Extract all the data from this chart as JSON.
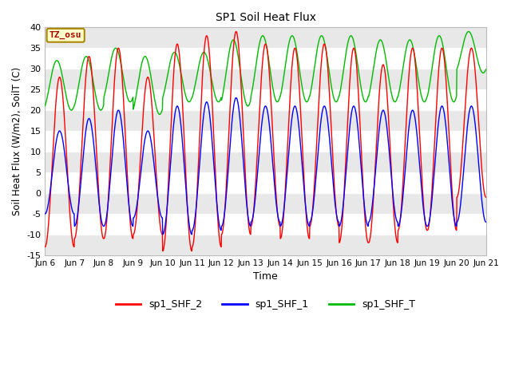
{
  "title": "SP1 Soil Heat Flux",
  "xlabel": "Time",
  "ylabel": "Soil Heat Flux (W/m2), SoilT (C)",
  "ylim": [
    -15,
    40
  ],
  "xlim": [
    0,
    15
  ],
  "yticks": [
    -15,
    -10,
    -5,
    0,
    5,
    10,
    15,
    20,
    25,
    30,
    35,
    40
  ],
  "xtick_labels": [
    "Jun 6",
    "Jun 7",
    "Jun 8",
    "Jun 9",
    "Jun 10",
    "Jun 11",
    "Jun 12",
    "Jun 13",
    "Jun 14",
    "Jun 15",
    "Jun 16",
    "Jun 17",
    "Jun 18",
    "Jun 19",
    "Jun 20",
    "Jun 21"
  ],
  "xtick_positions": [
    0,
    1,
    2,
    3,
    4,
    5,
    6,
    7,
    8,
    9,
    10,
    11,
    12,
    13,
    14,
    15
  ],
  "line_colors": [
    "#ff0000",
    "#0000ff",
    "#00bb00"
  ],
  "line_labels": [
    "sp1_SHF_2",
    "sp1_SHF_1",
    "sp1_SHF_T"
  ],
  "annotation_text": "TZ_osu",
  "annotation_color": "#aa0000",
  "annotation_bg": "#ffffcc",
  "annotation_border": "#aa8800",
  "figure_bg": "#ffffff",
  "plot_bg": "#ffffff",
  "band_color": "#e8e8e8",
  "n_days": 15,
  "points_per_day": 96,
  "shf2_max": [
    28,
    33,
    35,
    28,
    36,
    38,
    39,
    36,
    35,
    36,
    35,
    31,
    35,
    35,
    35
  ],
  "shf2_min": [
    -13,
    -11,
    -11,
    -10,
    -14,
    -13,
    -10,
    -8,
    -11,
    -8,
    -12,
    -12,
    -9,
    -9,
    -1
  ],
  "shf1_max": [
    15,
    18,
    20,
    15,
    21,
    22,
    23,
    21,
    21,
    21,
    21,
    20,
    20,
    21,
    21
  ],
  "shf1_min": [
    -5,
    -8,
    -8,
    -6,
    -10,
    -9,
    -8,
    -7,
    -8,
    -7,
    -8,
    -7,
    -8,
    -8,
    -7
  ],
  "shft_max": [
    32,
    33,
    35,
    33,
    34,
    34,
    37,
    38,
    38,
    38,
    38,
    37,
    37,
    38,
    39
  ],
  "shft_min": [
    20,
    20,
    22,
    19,
    22,
    22,
    21,
    22,
    22,
    22,
    22,
    22,
    22,
    22,
    29
  ]
}
